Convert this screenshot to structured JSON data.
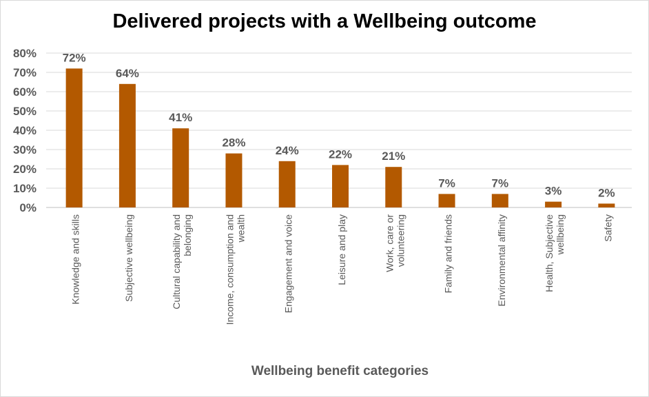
{
  "chart_data": {
    "type": "bar",
    "title": "Delivered projects with a Wellbeing outcome",
    "xlabel": "Wellbeing benefit categories",
    "ylabel": "",
    "ylim": [
      0,
      80
    ],
    "yticks": [
      "0%",
      "10%",
      "20%",
      "30%",
      "40%",
      "50%",
      "60%",
      "70%",
      "80%"
    ],
    "grid": true,
    "legend": "none",
    "color": "#B35900",
    "categories": [
      "Knowledge and skills",
      "Subjective wellbeing",
      "Cultural capability and belonging",
      "Income, consumption and wealth",
      "Engagement and voice",
      "Leisure and play",
      "Work, care or volunteering",
      "Family and friends",
      "Environmental affinity",
      "Health, Subjective wellbeing",
      "Safety"
    ],
    "values": [
      72,
      64,
      41,
      28,
      24,
      22,
      21,
      7,
      7,
      3,
      2
    ],
    "data_labels": [
      "72%",
      "64%",
      "41%",
      "28%",
      "24%",
      "22%",
      "21%",
      "7%",
      "7%",
      "3%",
      "2%"
    ]
  }
}
